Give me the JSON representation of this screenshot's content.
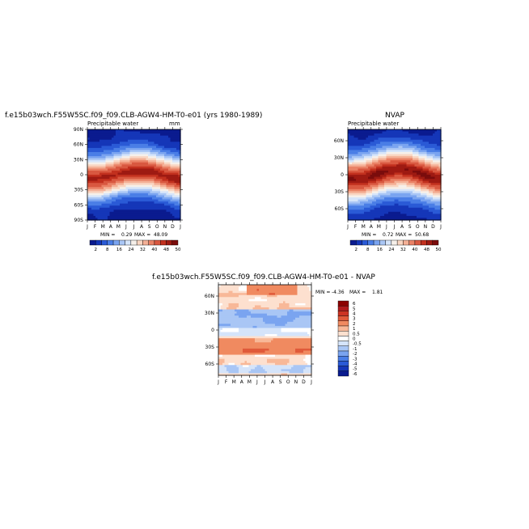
{
  "chart_data": [
    {
      "type": "heatmap",
      "title": "f.e15b03wch.F55W5SC.f09_f09.CLB-AGW4-HM-T0-e01 (yrs 1980-1989)",
      "subtitle": "Precipitable water",
      "units": "mm",
      "x_ticks": [
        "J",
        "F",
        "M",
        "A",
        "M",
        "J",
        "J",
        "A",
        "S",
        "O",
        "N",
        "D",
        "J"
      ],
      "y_ticks": [
        "90N",
        "60N",
        "30N",
        "0",
        "30S",
        "60S",
        "90S"
      ],
      "y_range": [
        -90,
        90
      ],
      "stats": {
        "min_label": "MIN =",
        "min": "0.29",
        "max_label": "MAX =",
        "max": "48.09"
      },
      "levels": [
        "2",
        "8",
        "16",
        "24",
        "32",
        "40",
        "48",
        "50"
      ]
    },
    {
      "type": "heatmap",
      "title": "NVAP",
      "subtitle": "Precipitable water",
      "x_ticks": [
        "J",
        "F",
        "M",
        "A",
        "M",
        "J",
        "J",
        "A",
        "S",
        "O",
        "N",
        "D",
        "J"
      ],
      "y_ticks": [
        "60N",
        "30N",
        "0",
        "30S",
        "60S"
      ],
      "y_range": [
        -80,
        80
      ],
      "stats": {
        "min_label": "MIN =",
        "min": "0.72",
        "max_label": "MAX =",
        "max": "50.68"
      },
      "levels": [
        "2",
        "8",
        "16",
        "24",
        "32",
        "40",
        "48",
        "50"
      ]
    },
    {
      "type": "heatmap",
      "title": "f.e15b03wch.F55W5SC.f09_f09.CLB-AGW4-HM-T0-e01 - NVAP",
      "x_ticks": [
        "J",
        "F",
        "M",
        "A",
        "M",
        "J",
        "J",
        "A",
        "S",
        "O",
        "N",
        "D",
        "J"
      ],
      "y_ticks": [
        "60N",
        "30N",
        "0",
        "30S",
        "60S"
      ],
      "y_range": [
        -80,
        80
      ],
      "stats": {
        "min_label": "MIN =",
        "min": "-4.36",
        "max_label": "MAX =",
        "max": "1.81"
      },
      "levels": [
        "6",
        "5",
        "4",
        "3",
        "2",
        "1",
        "0.5",
        "0",
        "-0.5",
        "-1",
        "-2",
        "-3",
        "-4",
        "-5",
        "-6"
      ]
    }
  ],
  "colors": {
    "seq": [
      "#0a1b8f",
      "#1536b8",
      "#2a5ad6",
      "#4a7ee6",
      "#7aa4f0",
      "#a9c6f5",
      "#d6e5fa",
      "#f6f0ea",
      "#f9d6c2",
      "#f4b096",
      "#ea8266",
      "#d95840",
      "#c2301e",
      "#9e1a12",
      "#7a0c0c"
    ],
    "div": [
      "#8b0000",
      "#b0191b",
      "#cc3322",
      "#e05a3a",
      "#f08a60",
      "#f8b898",
      "#fde0cf",
      "#ffffff",
      "#d5e4fa",
      "#a9c6f5",
      "#7aa4f0",
      "#4a7ee6",
      "#2a5ad6",
      "#1536b8",
      "#0a1b8f"
    ]
  }
}
